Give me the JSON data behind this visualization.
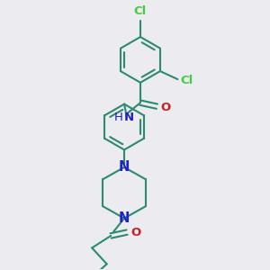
{
  "bg_color": "#ebebf0",
  "bond_color": "#2d8a6e",
  "N_color": "#2020cc",
  "O_color": "#cc2020",
  "Cl_color": "#44cc44",
  "line_width": 1.5,
  "font_size": 9.5,
  "fig_size": [
    3.0,
    3.0
  ],
  "dpi": 100,
  "xlim": [
    0,
    10
  ],
  "ylim": [
    0,
    10
  ]
}
